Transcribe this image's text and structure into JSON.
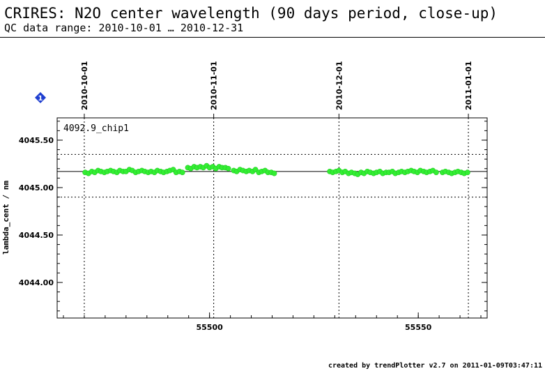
{
  "header": {
    "title": "CRIRES: N2O center wavelength (90 days period, close-up)",
    "subtitle": "QC data range: 2010-10-01 … 2010-12-31"
  },
  "footer": {
    "credit": "created by trendPlotter v2.7 on 2011-01-09T03:47:11"
  },
  "marker": {
    "label": "1",
    "color": "#1f3fd0"
  },
  "chart_data": {
    "type": "scatter",
    "panel_label": "4092.9_chip1",
    "ylabel": "lambda_cent / nm",
    "xlim": [
      55463.5,
      55566.5
    ],
    "ylim": [
      4043.625,
      4045.735
    ],
    "xticks": [
      55500,
      55550
    ],
    "yticks": [
      4044.0,
      4044.5,
      4045.0,
      4045.5
    ],
    "ytick_labels": [
      "4044.00",
      "4044.50",
      "4045.00",
      "4045.50"
    ],
    "top_axis": {
      "labels": [
        "2010-10-01",
        "2010-11-01",
        "2010-12-01",
        "2011-01-01"
      ],
      "mjd": [
        55470,
        55501,
        55531,
        55562
      ]
    },
    "reference_line": 4045.17,
    "limit_lines": [
      4045.35,
      4044.9
    ],
    "point_color": "#33ee33",
    "series": [
      {
        "x": [
          55470.2,
          55471.0,
          55471.8,
          55472.5,
          55473.3,
          55474.0,
          55474.8,
          55475.5,
          55476.3,
          55477.0,
          55477.8,
          55478.5,
          55479.3,
          55480.0,
          55480.8,
          55481.5,
          55482.3,
          55483.0,
          55483.8,
          55484.5,
          55485.3,
          55486.0,
          55486.8,
          55487.5,
          55488.3,
          55489.0,
          55489.8,
          55490.5,
          55491.3,
          55492.0,
          55492.8,
          55493.5,
          55494.8,
          55495.5,
          55496.3,
          55497.0,
          55497.8,
          55498.5,
          55499.3,
          55500.0,
          55500.8,
          55501.5,
          55502.3,
          55503.0,
          55503.8,
          55504.5,
          55505.8,
          55506.5,
          55507.3,
          55508.0,
          55508.8,
          55509.5,
          55510.3,
          55511.0,
          55511.8,
          55512.5,
          55513.3,
          55514.0,
          55514.8,
          55515.5,
          55528.8,
          55529.5,
          55530.3,
          55531.0,
          55531.8,
          55532.5,
          55533.3,
          55534.0,
          55534.8,
          55535.5,
          55536.3,
          55537.0,
          55537.8,
          55538.5,
          55539.3,
          55540.0,
          55540.8,
          55541.5,
          55542.3,
          55543.0,
          55543.8,
          55544.5,
          55545.3,
          55546.0,
          55546.8,
          55547.5,
          55548.3,
          55549.0,
          55549.8,
          55550.5,
          55551.3,
          55552.0,
          55552.8,
          55553.5,
          55554.3,
          55555.8,
          55556.5,
          55557.3,
          55558.0,
          55558.8,
          55559.5,
          55560.3,
          55561.0,
          55561.8
        ],
        "y": [
          4045.16,
          4045.15,
          4045.17,
          4045.16,
          4045.18,
          4045.17,
          4045.16,
          4045.17,
          4045.18,
          4045.17,
          4045.16,
          4045.18,
          4045.17,
          4045.17,
          4045.19,
          4045.18,
          4045.16,
          4045.17,
          4045.18,
          4045.17,
          4045.16,
          4045.17,
          4045.16,
          4045.18,
          4045.17,
          4045.16,
          4045.17,
          4045.18,
          4045.19,
          4045.16,
          4045.17,
          4045.16,
          4045.21,
          4045.2,
          4045.22,
          4045.21,
          4045.22,
          4045.21,
          4045.23,
          4045.21,
          4045.22,
          4045.2,
          4045.22,
          4045.21,
          4045.21,
          4045.2,
          4045.18,
          4045.17,
          4045.19,
          4045.18,
          4045.17,
          4045.18,
          4045.17,
          4045.19,
          4045.16,
          4045.17,
          4045.18,
          4045.16,
          4045.16,
          4045.15,
          4045.17,
          4045.16,
          4045.17,
          4045.18,
          4045.16,
          4045.17,
          4045.15,
          4045.16,
          4045.15,
          4045.14,
          4045.16,
          4045.15,
          4045.17,
          4045.16,
          4045.15,
          4045.16,
          4045.17,
          4045.15,
          4045.16,
          4045.16,
          4045.17,
          4045.15,
          4045.16,
          4045.17,
          4045.16,
          4045.17,
          4045.18,
          4045.17,
          4045.16,
          4045.18,
          4045.17,
          4045.16,
          4045.17,
          4045.18,
          4045.16,
          4045.16,
          4045.17,
          4045.16,
          4045.15,
          4045.16,
          4045.17,
          4045.16,
          4045.15,
          4045.16
        ]
      }
    ]
  }
}
